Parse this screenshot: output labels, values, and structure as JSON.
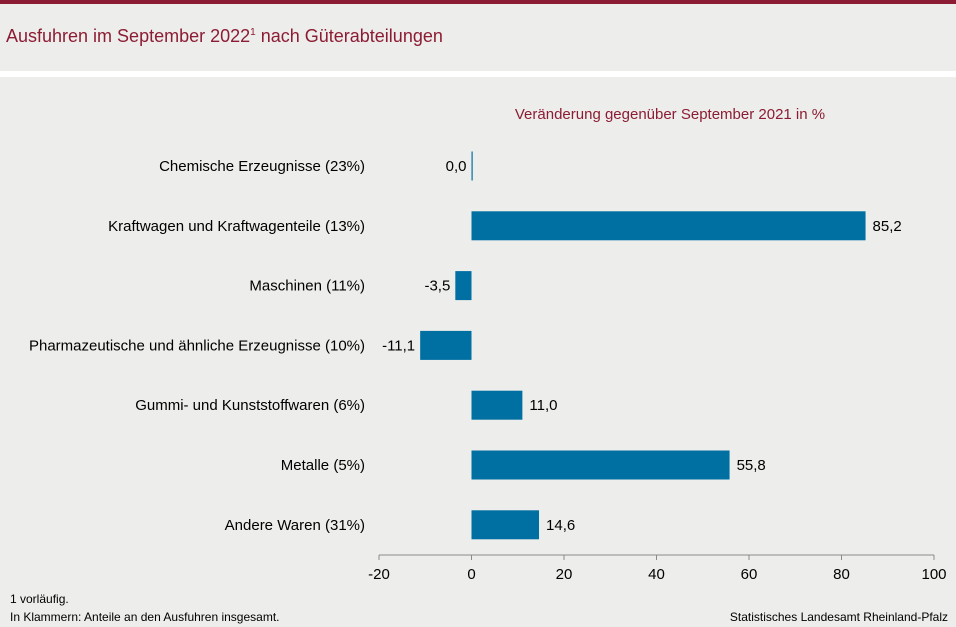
{
  "header": {
    "title": "Ausfuhren im September 2022",
    "title_sup": "1",
    "title_rest": " nach Güterabteilungen"
  },
  "chart_data": {
    "type": "bar",
    "orientation": "horizontal",
    "title": "Ausfuhren im September 2022¹ nach Güterabteilungen",
    "subtitle": "Veränderung gegenüber September 2021 in %",
    "categories": [
      "Chemische Erzeugnisse (23%)",
      "Kraftwagen und Kraftwagenteile (13%)",
      "Maschinen (11%)",
      "Pharmazeutische und ähnliche Erzeugnisse (10%)",
      "Gummi- und Kunststoffwaren (6%)",
      "Metalle (5%)",
      "Andere Waren (31%)"
    ],
    "values": [
      0.0,
      85.2,
      -3.5,
      -11.1,
      11.0,
      55.8,
      14.6
    ],
    "value_labels": [
      "0,0",
      "85,2",
      "-3,5",
      "-11,1",
      "11,0",
      "55,8",
      "14,6"
    ],
    "xlim": [
      -20,
      100
    ],
    "xticks": [
      -20,
      0,
      20,
      40,
      60,
      80,
      100
    ],
    "xtick_labels": [
      "-20",
      "0",
      "20",
      "40",
      "60",
      "80",
      "100"
    ],
    "xlabel": "",
    "ylabel": "",
    "grid": false,
    "bar_color": "#0070a3"
  },
  "footer": {
    "note1": "1 vorläufig.",
    "note2": "In Klammern: Anteile an den Ausfuhren insgesamt.",
    "source": "Statistisches Landesamt Rheinland-Pfalz"
  },
  "colors": {
    "accent": "#8c1c33",
    "bar": "#0070a3",
    "background": "#ededeb"
  }
}
